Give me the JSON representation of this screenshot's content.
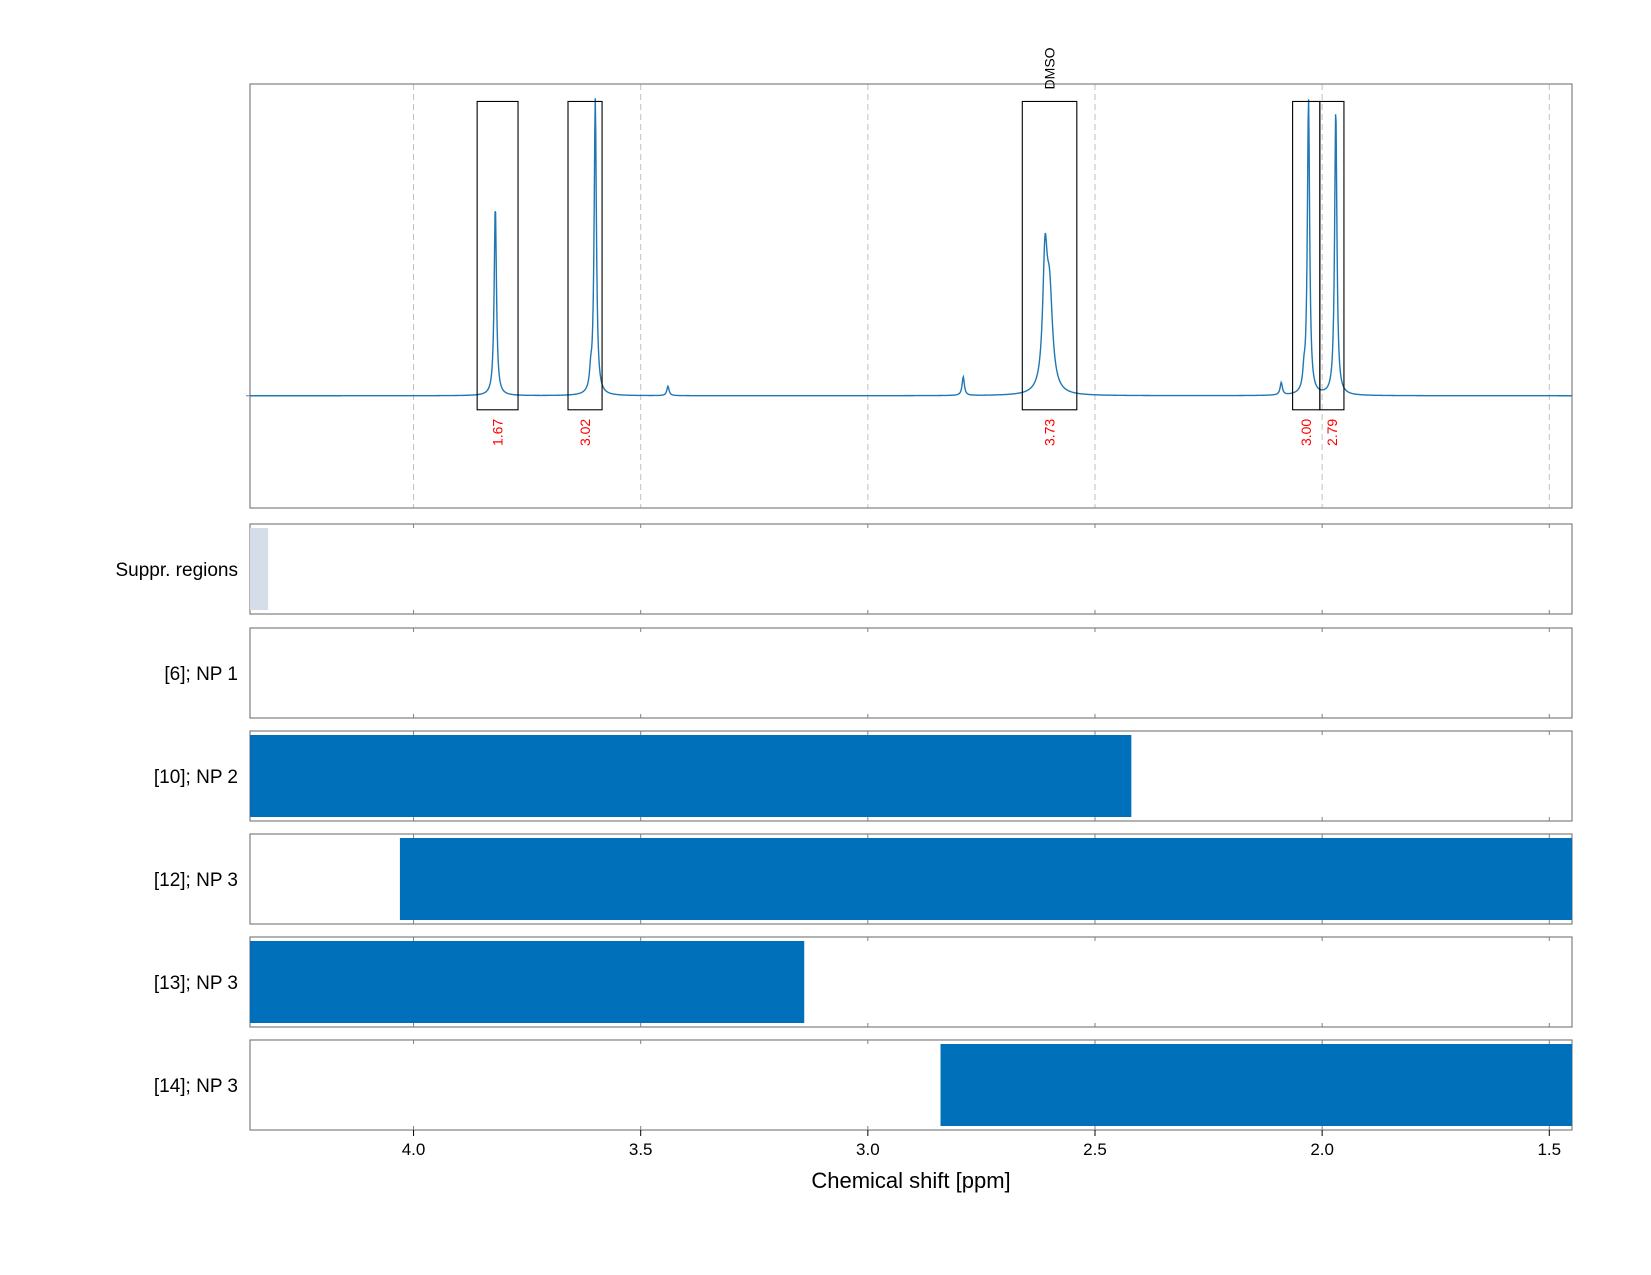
{
  "chart_data": {
    "type": "line",
    "xlabel": "Chemical shift [ppm]",
    "x_reversed": true,
    "xlim": [
      4.36,
      1.45
    ],
    "x_ticks": [
      {
        "value": 4.0,
        "label": "4.0"
      },
      {
        "value": 3.5,
        "label": "3.5"
      },
      {
        "value": 3.0,
        "label": "3.0"
      },
      {
        "value": 2.5,
        "label": "2.5"
      },
      {
        "value": 2.0,
        "label": "2.0"
      },
      {
        "value": 1.5,
        "label": "1.5"
      }
    ],
    "grid": true,
    "spectrum": {
      "color": "#1f77b4",
      "ylim": [
        -0.36,
        1.0
      ],
      "peaks": [
        {
          "x": 3.82,
          "height": 0.61,
          "width": 0.003
        },
        {
          "x": 3.6,
          "height": 0.95,
          "width": 0.003
        },
        {
          "x": 3.61,
          "height": 0.05,
          "width": 0.003
        },
        {
          "x": 3.44,
          "height": 0.03,
          "width": 0.003
        },
        {
          "x": 2.79,
          "height": 0.06,
          "width": 0.003
        },
        {
          "x": 2.61,
          "height": 0.4,
          "width": 0.006
        },
        {
          "x": 2.6,
          "height": 0.3,
          "width": 0.008
        },
        {
          "x": 2.09,
          "height": 0.04,
          "width": 0.003
        },
        {
          "x": 2.03,
          "height": 0.95,
          "width": 0.003
        },
        {
          "x": 2.04,
          "height": 0.05,
          "width": 0.003
        },
        {
          "x": 1.97,
          "height": 0.92,
          "width": 0.003
        }
      ]
    },
    "integration_regions": [
      {
        "x0": 3.86,
        "x1": 3.77,
        "label": "1.67"
      },
      {
        "x0": 3.66,
        "x1": 3.585,
        "label": "3.02"
      },
      {
        "x0": 2.66,
        "x1": 2.54,
        "label": "3.73",
        "annotation": "DMSO"
      },
      {
        "x0": 2.065,
        "x1": 2.005,
        "label": "3.00"
      },
      {
        "x0": 2.005,
        "x1": 1.952,
        "label": "2.79"
      }
    ],
    "integration_label_color": "#ff0000",
    "bar_color": "#0070bb",
    "suppr_color": "#d5dee8",
    "tracks": [
      {
        "label": "Suppr. regions",
        "kind": "suppressed",
        "ranges": [
          [
            4.36,
            4.32
          ]
        ]
      },
      {
        "label": "[6]; NP 1",
        "kind": "range",
        "ranges": []
      },
      {
        "label": "[10]; NP 2",
        "kind": "range",
        "ranges": [
          [
            4.36,
            2.42
          ]
        ]
      },
      {
        "label": "[12]; NP 3",
        "kind": "range",
        "ranges": [
          [
            4.03,
            1.45
          ]
        ]
      },
      {
        "label": "[13]; NP 3",
        "kind": "range",
        "ranges": [
          [
            4.36,
            3.14
          ]
        ]
      },
      {
        "label": "[14]; NP 3",
        "kind": "range",
        "ranges": [
          [
            2.84,
            1.45
          ]
        ]
      }
    ]
  }
}
